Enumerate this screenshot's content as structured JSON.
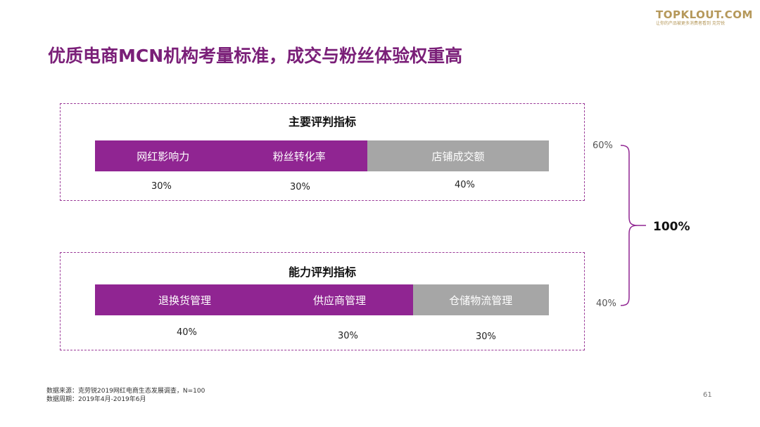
{
  "logo": {
    "main": "TOPKLOUT.COM",
    "sub": "让你的产品被更多消费者看到 克劳锐"
  },
  "title": "优质电商MCN机构考量标准，成交与粉丝体验权重高",
  "panels": [
    {
      "heading": "主要评判指标",
      "segments": [
        {
          "label": "网红影响力",
          "percent": "30%",
          "share": 30,
          "color": "#902592"
        },
        {
          "label": "粉丝转化率",
          "percent": "30%",
          "share": 30,
          "color": "#902592"
        },
        {
          "label": "店铺成交额",
          "percent": "40%",
          "share": 40,
          "color": "#a6a6a6"
        }
      ]
    },
    {
      "heading": "能力评判指标",
      "segments": [
        {
          "label": "退换货管理",
          "percent": "40%",
          "share": 40,
          "color": "#902592"
        },
        {
          "label": "供应商管理",
          "percent": "30%",
          "share": 30,
          "color": "#902592"
        },
        {
          "label": "仓储物流管理",
          "percent": "30%",
          "share": 30,
          "color": "#a6a6a6"
        }
      ]
    }
  ],
  "weights": {
    "top": "60%",
    "bottom": "40%",
    "total": "100%"
  },
  "source": {
    "line1": "数据来源：克劳锐2019网红电商生态发展调查，N=100",
    "line2": "数据周期：2019年4月-2019年6月"
  },
  "page_number": "61",
  "colors": {
    "accent": "#902592",
    "title": "#7a1f78",
    "neutral": "#a6a6a6",
    "logo": "#b5985a"
  }
}
